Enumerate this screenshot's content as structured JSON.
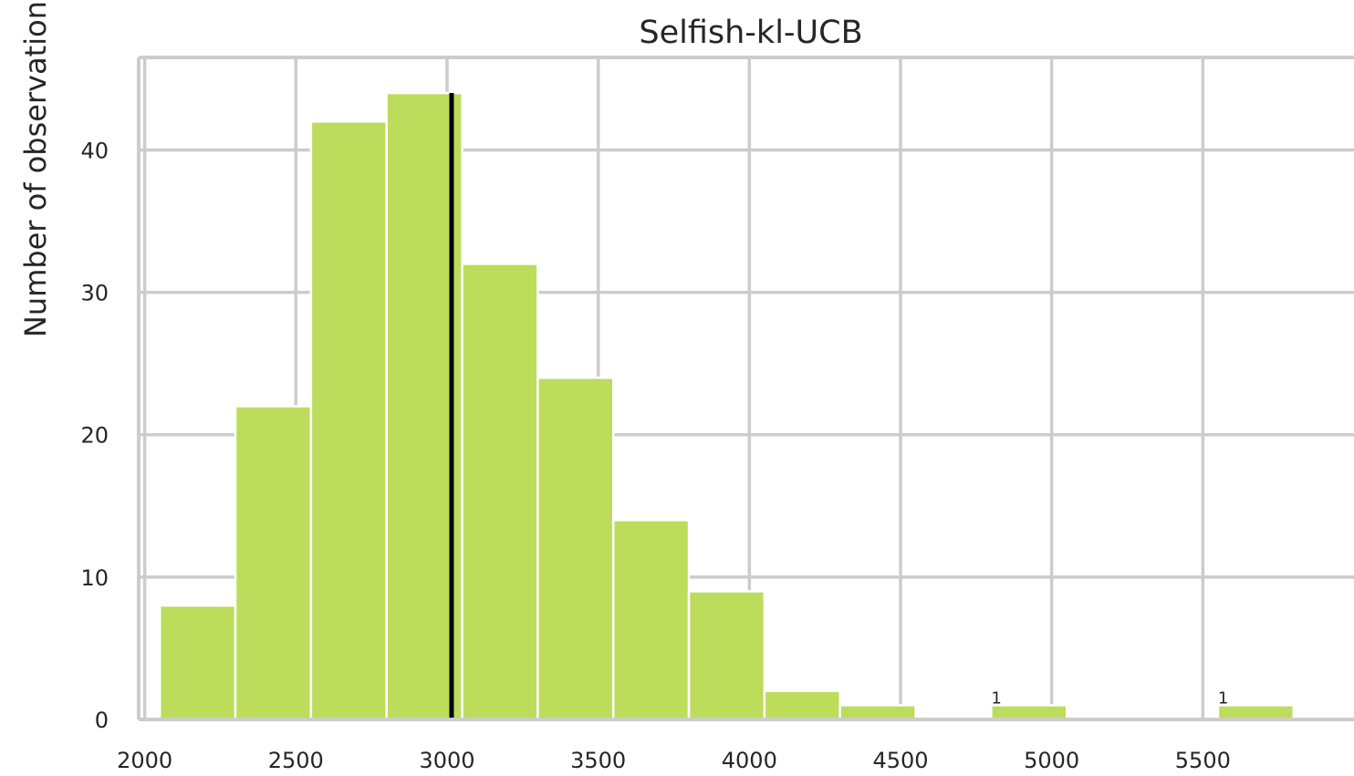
{
  "chart_data": {
    "type": "bar",
    "title": "Selfish-kl-UCB",
    "ylabel": "Number of observations",
    "xlabel": "",
    "bin_edges": [
      2050,
      2300,
      2550,
      2800,
      3050,
      3300,
      3550,
      3800,
      4050,
      4300,
      4550,
      4800,
      5050,
      5300,
      5550,
      5800
    ],
    "counts": [
      8,
      22,
      42,
      44,
      32,
      24,
      14,
      9,
      2,
      1,
      0,
      1,
      0,
      0,
      1
    ],
    "xlim": [
      1980,
      6000
    ],
    "ylim": [
      0,
      46.5
    ],
    "xticks": [
      2000,
      2500,
      3000,
      3500,
      4000,
      4500,
      5000,
      5500
    ],
    "yticks": [
      0,
      10,
      20,
      30,
      40
    ],
    "bar_color": "#bcdc5c",
    "vline": {
      "x": 3015,
      "color": "#000000"
    },
    "annotations": [
      {
        "x": 4800,
        "y": 1,
        "text": "1"
      },
      {
        "x": 5550,
        "y": 1,
        "text": "1"
      }
    ],
    "grid": true
  }
}
